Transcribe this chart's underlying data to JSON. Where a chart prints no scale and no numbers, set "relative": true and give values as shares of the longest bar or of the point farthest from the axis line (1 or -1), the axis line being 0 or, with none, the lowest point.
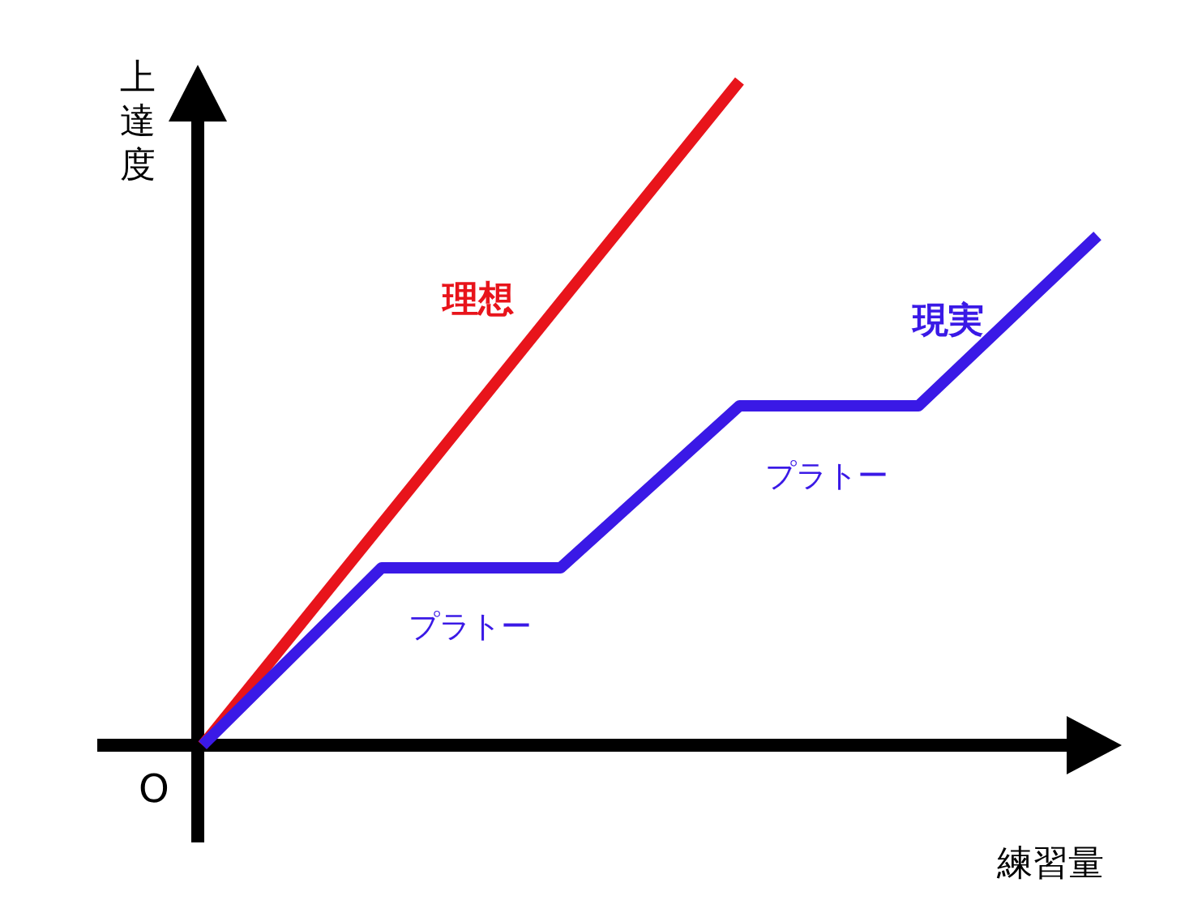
{
  "chart_data": {
    "type": "line",
    "relative": true,
    "xlabel": "練習量",
    "ylabel": "上達度",
    "categories": [
      null,
      null,
      null,
      null,
      null,
      null
    ],
    "series": [
      {
        "name": "理想",
        "color": "#e8141b",
        "values": [
          0,
          0.333,
          0.667,
          1.0,
          null,
          null
        ]
      },
      {
        "name": "現実",
        "color": "#3a19e6",
        "values": [
          0,
          0.267,
          0.267,
          0.511,
          0.511,
          0.767
        ]
      }
    ],
    "annotations": [
      "プラトー",
      "プラトー",
      "O"
    ],
    "legend": false,
    "marker": "none",
    "line_style": "solid"
  }
}
